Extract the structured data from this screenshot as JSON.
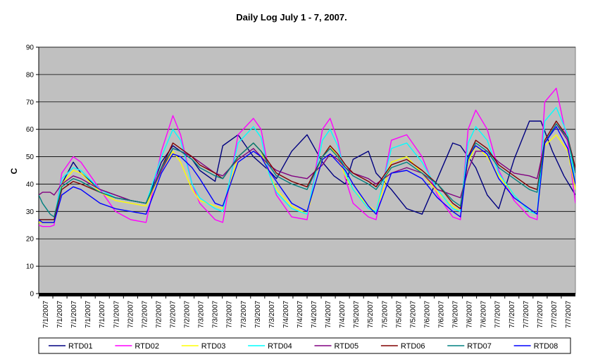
{
  "chart_data": {
    "type": "line",
    "title": "Daily Log July 1 - 7, 2007.",
    "xlabel": "",
    "ylabel": "C",
    "ylim": [
      0,
      90
    ],
    "yticks": [
      0,
      10,
      20,
      30,
      40,
      50,
      60,
      70,
      80,
      90
    ],
    "grid": true,
    "plot_background": "#c0c0c0",
    "legend_position": "bottom",
    "x_tick_labels": [
      "7/1/2007",
      "7/1/2007",
      "7/1/2007",
      "7/1/2007",
      "7/1/2007",
      "7/1/2007",
      "7/2/2007",
      "7/2/2007",
      "7/2/2007",
      "7/2/2007",
      "7/2/2007",
      "7/3/2007",
      "7/3/2007",
      "7/3/2007",
      "7/3/2007",
      "7/3/2007",
      "7/3/2007",
      "7/4/2007",
      "7/4/2007",
      "7/4/2007",
      "7/4/2007",
      "7/4/2007",
      "7/5/2007",
      "7/5/2007",
      "7/5/2007",
      "7/5/2007",
      "7/5/2007",
      "7/6/2007",
      "7/6/2007",
      "7/6/2007",
      "7/6/2007",
      "7/6/2007",
      "7/7/2007",
      "7/7/2007",
      "7/7/2007",
      "7/7/2007",
      "7/7/2007",
      "7/7/2007"
    ],
    "x_day_range": [
      0,
      7
    ],
    "series": [
      {
        "name": "RTD01",
        "color": "#000080",
        "x": [
          0,
          0.02,
          0.08,
          0.15,
          0.2,
          0.3,
          0.45,
          0.55,
          0.8,
          1.0,
          1.2,
          1.4,
          1.6,
          1.75,
          2.0,
          2.1,
          2.3,
          2.4,
          2.6,
          2.8,
          3.0,
          3.1,
          3.3,
          3.5,
          3.7,
          3.85,
          4.0,
          4.1,
          4.3,
          4.4,
          4.6,
          4.8,
          5.0,
          5.2,
          5.4,
          5.5,
          5.7,
          5.85,
          6.0,
          6.2,
          6.4,
          6.55,
          6.7,
          6.85,
          7.0
        ],
        "y": [
          26,
          26,
          26,
          26,
          26,
          40,
          48,
          44,
          38,
          36,
          34,
          33,
          48,
          54,
          49,
          45,
          41,
          54,
          58,
          50,
          45,
          42,
          52,
          58,
          48,
          43,
          40,
          49,
          52,
          44,
          38,
          31,
          29,
          42,
          55,
          54,
          46,
          36,
          31,
          49,
          63,
          63,
          52,
          43,
          36
        ]
      },
      {
        "name": "RTD02",
        "color": "#ff00ff",
        "x": [
          0,
          0.05,
          0.15,
          0.2,
          0.3,
          0.45,
          0.55,
          0.8,
          1.0,
          1.2,
          1.4,
          1.6,
          1.75,
          1.85,
          2.0,
          2.1,
          2.3,
          2.4,
          2.6,
          2.8,
          2.9,
          3.0,
          3.1,
          3.3,
          3.5,
          3.7,
          3.8,
          3.9,
          4.0,
          4.1,
          4.3,
          4.4,
          4.6,
          4.8,
          5.0,
          5.2,
          5.4,
          5.5,
          5.6,
          5.7,
          5.85,
          6.0,
          6.2,
          6.4,
          6.5,
          6.6,
          6.75,
          6.9,
          7.0
        ],
        "y": [
          25,
          24.5,
          24.5,
          25,
          44,
          50,
          48,
          38,
          30,
          27,
          26,
          52,
          65,
          58,
          40,
          33,
          27,
          26,
          58,
          64,
          60,
          45,
          36,
          28,
          27,
          60,
          64,
          56,
          42,
          33,
          28,
          27,
          56,
          58,
          50,
          36,
          28,
          27,
          60,
          67,
          60,
          45,
          34,
          28,
          27,
          70,
          75,
          55,
          33
        ]
      },
      {
        "name": "RTD03",
        "color": "#ffff00",
        "x": [
          0,
          0.05,
          0.15,
          0.2,
          0.3,
          0.45,
          0.55,
          0.8,
          1.0,
          1.2,
          1.4,
          1.6,
          1.75,
          1.85,
          2.0,
          2.1,
          2.3,
          2.4,
          2.6,
          2.8,
          2.9,
          3.0,
          3.1,
          3.3,
          3.5,
          3.7,
          3.8,
          3.9,
          4.0,
          4.1,
          4.3,
          4.4,
          4.6,
          4.8,
          5.0,
          5.2,
          5.4,
          5.5,
          5.6,
          5.7,
          5.85,
          6.0,
          6.2,
          6.4,
          6.5,
          6.6,
          6.75,
          6.9,
          7.0
        ],
        "y": [
          26,
          26,
          26,
          26,
          40,
          45,
          44,
          37,
          34,
          33,
          32,
          45,
          52,
          48,
          38,
          34,
          32,
          31,
          50,
          55,
          52,
          44,
          38,
          32,
          29,
          50,
          54,
          50,
          43,
          38,
          32,
          30,
          48,
          50,
          44,
          37,
          32,
          30,
          48,
          54,
          50,
          43,
          36,
          30,
          29,
          54,
          58,
          52,
          38
        ]
      },
      {
        "name": "RTD04",
        "color": "#00ffff",
        "x": [
          0,
          0.05,
          0.15,
          0.2,
          0.3,
          0.45,
          0.55,
          0.8,
          1.0,
          1.2,
          1.4,
          1.6,
          1.75,
          1.85,
          2.0,
          2.1,
          2.3,
          2.4,
          2.6,
          2.8,
          2.9,
          3.0,
          3.1,
          3.3,
          3.5,
          3.7,
          3.8,
          3.9,
          4.0,
          4.1,
          4.3,
          4.4,
          4.6,
          4.8,
          5.0,
          5.2,
          5.4,
          5.5,
          5.6,
          5.7,
          5.85,
          6.0,
          6.2,
          6.4,
          6.5,
          6.6,
          6.75,
          6.9,
          7.0
        ],
        "y": [
          27,
          27,
          27,
          27,
          42,
          46,
          45,
          38,
          35,
          34,
          33,
          50,
          60,
          56,
          40,
          35,
          31,
          30,
          55,
          61,
          57,
          44,
          37,
          31,
          29,
          56,
          60,
          54,
          44,
          38,
          31,
          30,
          53,
          55,
          48,
          38,
          31,
          30,
          55,
          61,
          56,
          44,
          36,
          30,
          29,
          63,
          68,
          58,
          40
        ]
      },
      {
        "name": "RTD05",
        "color": "#800080",
        "x": [
          0,
          0.05,
          0.15,
          0.2,
          0.3,
          0.45,
          0.55,
          0.8,
          1.0,
          1.2,
          1.4,
          1.6,
          1.75,
          1.85,
          2.0,
          2.1,
          2.3,
          2.4,
          2.6,
          2.8,
          2.9,
          3.0,
          3.1,
          3.3,
          3.5,
          3.7,
          3.8,
          3.9,
          4.0,
          4.1,
          4.3,
          4.4,
          4.6,
          4.8,
          5.0,
          5.2,
          5.4,
          5.5,
          5.6,
          5.7,
          5.85,
          6.0,
          6.2,
          6.4,
          6.5,
          6.6,
          6.75,
          6.9,
          7.0
        ],
        "y": [
          36,
          37,
          37,
          36,
          40,
          43,
          42,
          38,
          36,
          34,
          33,
          45,
          53,
          52,
          50,
          48,
          44,
          43,
          49,
          53,
          50,
          47,
          45,
          43,
          42,
          47,
          51,
          49,
          46,
          44,
          42,
          40,
          44,
          46,
          44,
          38,
          36,
          35,
          45,
          52,
          52,
          48,
          44,
          43,
          42,
          55,
          62,
          56,
          45
        ]
      },
      {
        "name": "RTD06",
        "color": "#800000",
        "x": [
          0,
          0.05,
          0.15,
          0.2,
          0.3,
          0.45,
          0.55,
          0.8,
          1.0,
          1.2,
          1.4,
          1.6,
          1.75,
          1.85,
          2.0,
          2.1,
          2.3,
          2.4,
          2.6,
          2.8,
          2.9,
          3.0,
          3.1,
          3.3,
          3.5,
          3.7,
          3.8,
          3.9,
          4.0,
          4.1,
          4.3,
          4.4,
          4.6,
          4.8,
          5.0,
          5.2,
          5.4,
          5.5,
          5.6,
          5.7,
          5.85,
          6.0,
          6.2,
          6.4,
          6.5,
          6.6,
          6.75,
          6.9,
          7.0
        ],
        "y": [
          27,
          27,
          27,
          27,
          38,
          41,
          40,
          37,
          35,
          34,
          33,
          46,
          55,
          53,
          50,
          47,
          44,
          42,
          50,
          55,
          52,
          48,
          44,
          41,
          39,
          50,
          54,
          51,
          47,
          44,
          41,
          39,
          47,
          49,
          45,
          40,
          33,
          31,
          50,
          56,
          53,
          47,
          43,
          39,
          38,
          56,
          63,
          57,
          46
        ]
      },
      {
        "name": "RTD07",
        "color": "#008080",
        "x": [
          0,
          0.05,
          0.15,
          0.2,
          0.3,
          0.45,
          0.55,
          0.8,
          1.0,
          1.2,
          1.4,
          1.6,
          1.75,
          1.85,
          2.0,
          2.1,
          2.3,
          2.4,
          2.6,
          2.8,
          2.9,
          3.0,
          3.1,
          3.3,
          3.5,
          3.7,
          3.8,
          3.9,
          4.0,
          4.1,
          4.3,
          4.4,
          4.6,
          4.8,
          5.0,
          5.2,
          5.4,
          5.5,
          5.6,
          5.7,
          5.85,
          6.0,
          6.2,
          6.4,
          6.5,
          6.6,
          6.75,
          6.9,
          7.0
        ],
        "y": [
          36,
          33,
          29,
          28,
          39,
          42,
          41,
          37,
          35,
          34,
          33,
          46,
          53,
          52,
          49,
          46,
          43,
          42,
          50,
          55,
          52,
          47,
          43,
          40,
          38,
          50,
          53,
          50,
          46,
          43,
          40,
          38,
          46,
          48,
          44,
          40,
          34,
          32,
          49,
          55,
          52,
          46,
          42,
          38,
          37,
          55,
          62,
          57,
          44
        ]
      },
      {
        "name": "RTD08",
        "color": "#0000ff",
        "x": [
          0,
          0.05,
          0.15,
          0.2,
          0.3,
          0.45,
          0.55,
          0.8,
          1.0,
          1.2,
          1.4,
          1.6,
          1.75,
          1.85,
          2.0,
          2.1,
          2.3,
          2.4,
          2.6,
          2.8,
          2.9,
          3.0,
          3.1,
          3.3,
          3.5,
          3.7,
          3.8,
          3.9,
          4.0,
          4.1,
          4.3,
          4.4,
          4.6,
          4.8,
          5.0,
          5.2,
          5.4,
          5.5,
          5.6,
          5.7,
          5.85,
          6.0,
          6.2,
          6.4,
          6.5,
          6.6,
          6.75,
          6.9,
          7.0
        ],
        "y": [
          27,
          26,
          26,
          26,
          36,
          39,
          38,
          33,
          31,
          30,
          29,
          44,
          51,
          50,
          46,
          42,
          33,
          32,
          48,
          52,
          50,
          45,
          41,
          33,
          30,
          49,
          51,
          48,
          45,
          40,
          32,
          29,
          44,
          45,
          42,
          35,
          30,
          28,
          50,
          54,
          51,
          42,
          35,
          31,
          29,
          55,
          61,
          53,
          40
        ]
      }
    ]
  }
}
